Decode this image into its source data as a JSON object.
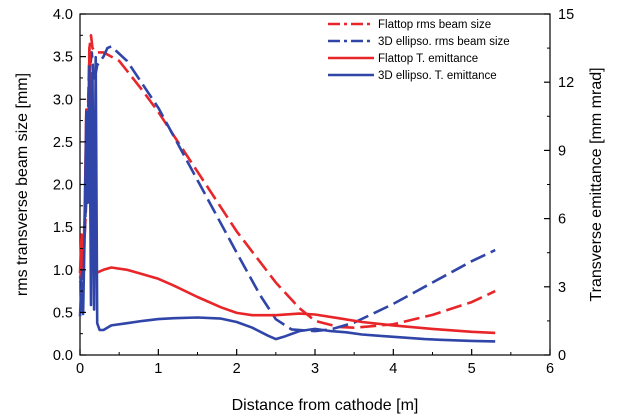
{
  "chart_data": {
    "type": "line",
    "title": "",
    "xlabel": "Distance from cathode [m]",
    "ylabel_left": "rms transverse beam size [mm]",
    "ylabel_right": "Transverse emittance  [mm mrad]",
    "xlim": [
      0,
      6
    ],
    "ylim_left": [
      0,
      4.0
    ],
    "ylim_right": [
      0,
      15
    ],
    "x_ticks": [
      "0",
      "1",
      "2",
      "3",
      "4",
      "5",
      "6"
    ],
    "y_ticks_left": [
      "0.0",
      "0.5",
      "1.0",
      "1.5",
      "2.0",
      "2.5",
      "3.0",
      "3.5",
      "4.0"
    ],
    "y_ticks_right": [
      "0",
      "3",
      "6",
      "9",
      "12",
      "15"
    ],
    "grid": false,
    "legend_position": "top-right",
    "colors": {
      "red": "#e8262a",
      "blue": "#3045a8"
    },
    "series": [
      {
        "name": "Flattop rms beam size",
        "axis": "left",
        "color": "#e8262a",
        "style": "dashdot",
        "x": [
          0,
          0.02,
          0.05,
          0.08,
          0.1,
          0.12,
          0.14,
          0.16,
          0.2,
          0.3,
          0.5,
          0.8,
          1.0,
          1.5,
          2.0,
          2.5,
          2.8,
          3.0,
          3.3,
          3.5,
          4.0,
          4.5,
          5.0,
          5.3
        ],
        "y": [
          0.9,
          1.0,
          1.2,
          1.8,
          2.8,
          3.6,
          3.75,
          3.6,
          3.55,
          3.55,
          3.45,
          3.1,
          2.85,
          2.15,
          1.45,
          0.85,
          0.55,
          0.4,
          0.33,
          0.32,
          0.36,
          0.47,
          0.62,
          0.75
        ]
      },
      {
        "name": "3D ellipso. rms beam size",
        "axis": "left",
        "color": "#3045a8",
        "style": "dashdot",
        "x": [
          0,
          0.02,
          0.05,
          0.08,
          0.1,
          0.12,
          0.15,
          0.18,
          0.22,
          0.26,
          0.3,
          0.35,
          0.4,
          0.6,
          1.0,
          1.5,
          2.0,
          2.3,
          2.5,
          2.7,
          3.0,
          3.2,
          3.5,
          4.0,
          4.5,
          5.0,
          5.3
        ],
        "y": [
          0.85,
          0.9,
          1.2,
          1.9,
          2.8,
          3.3,
          3.55,
          3.2,
          3.4,
          3.45,
          3.5,
          3.6,
          3.62,
          3.45,
          2.9,
          2.05,
          1.2,
          0.7,
          0.42,
          0.3,
          0.28,
          0.3,
          0.38,
          0.6,
          0.85,
          1.1,
          1.23
        ]
      },
      {
        "name": "Flattop T. emittance",
        "axis": "right",
        "color": "#e8262a",
        "style": "solid",
        "x": [
          0,
          0.02,
          0.04,
          0.06,
          0.08,
          0.1,
          0.12,
          0.14,
          0.16,
          0.18,
          0.2,
          0.3,
          0.4,
          0.6,
          0.8,
          1.0,
          1.2,
          1.5,
          1.8,
          2.0,
          2.2,
          2.5,
          2.8,
          3.0,
          3.3,
          3.6,
          4.0,
          4.5,
          5.0,
          5.3
        ],
        "y": [
          3.6,
          5.3,
          3.8,
          6.3,
          10.8,
          7.8,
          13.5,
          11.5,
          8.8,
          5.0,
          3.6,
          3.75,
          3.85,
          3.75,
          3.55,
          3.35,
          3.05,
          2.55,
          2.1,
          1.85,
          1.75,
          1.75,
          1.82,
          1.78,
          1.62,
          1.45,
          1.3,
          1.15,
          1.02,
          0.97
        ]
      },
      {
        "name": "3D ellipso.  T. emittance",
        "axis": "right",
        "color": "#3045a8",
        "style": "solid",
        "x": [
          0,
          0.02,
          0.04,
          0.06,
          0.08,
          0.1,
          0.12,
          0.14,
          0.16,
          0.18,
          0.2,
          0.22,
          0.25,
          0.3,
          0.4,
          0.6,
          0.8,
          1.0,
          1.2,
          1.5,
          1.8,
          2.0,
          2.2,
          2.4,
          2.5,
          2.6,
          2.8,
          3.0,
          3.2,
          3.4,
          3.6,
          3.8,
          4.0,
          4.2,
          4.4,
          4.6,
          5.0,
          5.3
        ],
        "y": [
          1.7,
          3.2,
          1.8,
          5.5,
          10.7,
          6.7,
          12.7,
          2.2,
          12.4,
          2.0,
          13.1,
          1.4,
          1.1,
          1.1,
          1.3,
          1.4,
          1.5,
          1.58,
          1.62,
          1.65,
          1.6,
          1.45,
          1.2,
          0.85,
          0.7,
          0.8,
          1.05,
          1.15,
          1.05,
          1.0,
          0.9,
          0.85,
          0.8,
          0.75,
          0.7,
          0.67,
          0.62,
          0.6
        ]
      }
    ]
  }
}
